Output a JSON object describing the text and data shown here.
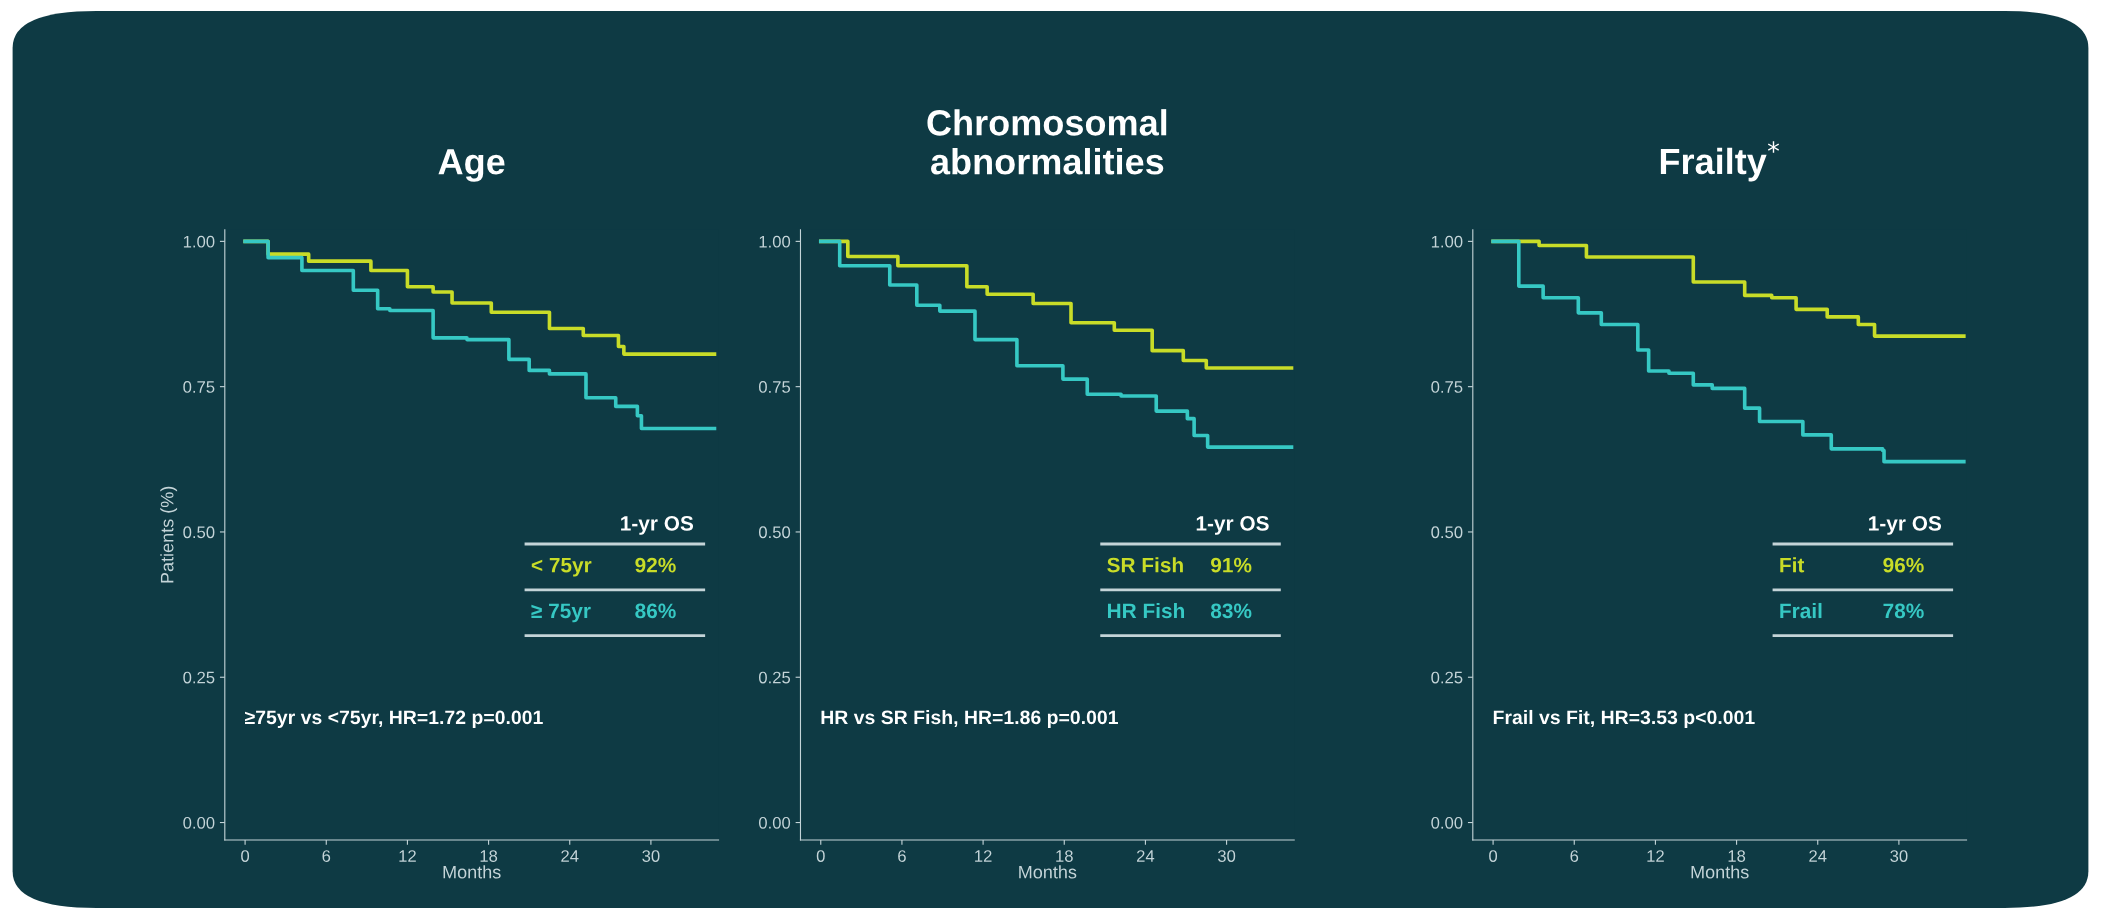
{
  "chart_data": [
    {
      "type": "step",
      "title": "Age",
      "xlabel": "Months",
      "ylabel": "Patients (%)",
      "xlim": [
        -1.5,
        35
      ],
      "ylim": [
        -0.03,
        1.02
      ],
      "xticks": [
        0,
        6,
        12,
        18,
        24,
        30
      ],
      "yticks": [
        {
          "value": 0,
          "label": "0.00"
        },
        {
          "value": 0.25,
          "label": "0.25"
        },
        {
          "value": 0.5,
          "label": "0.50"
        },
        {
          "value": 0.75,
          "label": "0.75"
        },
        {
          "value": 1,
          "label": "1.00"
        }
      ],
      "grid": false,
      "legend": "right",
      "legend_title": "1-yr OS",
      "series": [
        {
          "name": "< 75yr",
          "color": "#c8dc28",
          "x": [
            0,
            1.7,
            4.7,
            9.3,
            12,
            13.9,
            15.3,
            18.2,
            22.5,
            25,
            27.6,
            28,
            34.7
          ],
          "values": [
            1.0,
            0.978,
            0.966,
            0.95,
            0.922,
            0.913,
            0.894,
            0.878,
            0.85,
            0.838,
            0.819,
            0.806,
            0.806
          ]
        },
        {
          "name": "≥ 75yr",
          "color": "#36c8c4",
          "x": [
            0,
            1.7,
            4.2,
            8,
            9.8,
            10.7,
            13.9,
            16.4,
            19.5,
            21,
            22.5,
            25.2,
            27.4,
            29,
            29.3,
            34.7
          ],
          "values": [
            1.0,
            0.972,
            0.95,
            0.916,
            0.884,
            0.881,
            0.834,
            0.831,
            0.797,
            0.778,
            0.772,
            0.731,
            0.716,
            0.7,
            0.678,
            0.678
          ]
        }
      ],
      "annotations": [
        "92%",
        "86%",
        "≥75yr vs <75yr, HR=1.72 p=0.001"
      ]
    },
    {
      "type": "step",
      "title": "Chromosomal\nabnormalities",
      "xlabel": "Months",
      "xlim": [
        -1.5,
        35
      ],
      "ylim": [
        -0.03,
        1.02
      ],
      "xticks": [
        0,
        6,
        12,
        18,
        24,
        30
      ],
      "yticks": [
        {
          "value": 0,
          "label": "0.00"
        },
        {
          "value": 0.25,
          "label": "0.25"
        },
        {
          "value": 0.5,
          "label": "0.50"
        },
        {
          "value": 0.75,
          "label": "0.75"
        },
        {
          "value": 1,
          "label": "1.00"
        }
      ],
      "grid": false,
      "legend": "right",
      "legend_title": "1-yr OS",
      "series": [
        {
          "name": "SR Fish",
          "color": "#c8dc28",
          "x": [
            0,
            2,
            5.7,
            10.8,
            12.3,
            15.7,
            18.5,
            21.7,
            24.5,
            26.8,
            28.5,
            34.8
          ],
          "values": [
            1.0,
            0.974,
            0.958,
            0.922,
            0.909,
            0.893,
            0.86,
            0.847,
            0.812,
            0.795,
            0.782,
            0.782
          ]
        },
        {
          "name": "HR Fish",
          "color": "#36c8c4",
          "x": [
            0,
            1.4,
            5.1,
            7.1,
            8.8,
            11.4,
            14.5,
            17.9,
            19.7,
            22.2,
            24.8,
            27.1,
            27.6,
            28.6,
            34.8
          ],
          "values": [
            1.0,
            0.958,
            0.925,
            0.89,
            0.88,
            0.831,
            0.786,
            0.763,
            0.737,
            0.734,
            0.708,
            0.695,
            0.666,
            0.646,
            0.646
          ]
        }
      ],
      "annotations": [
        "91%",
        "83%",
        "HR vs SR Fish, HR=1.86 p=0.001"
      ]
    },
    {
      "type": "step",
      "title": "Frailty$^{*}$",
      "xlabel": "Months",
      "xlim": [
        -1.5,
        35
      ],
      "ylim": [
        -0.03,
        1.02
      ],
      "xticks": [
        0,
        6,
        12,
        18,
        24,
        30
      ],
      "yticks": [
        {
          "value": 0,
          "label": "0.00"
        },
        {
          "value": 0.25,
          "label": "0.25"
        },
        {
          "value": 0.5,
          "label": "0.50"
        },
        {
          "value": 0.75,
          "label": "0.75"
        },
        {
          "value": 1,
          "label": "1.00"
        }
      ],
      "grid": false,
      "legend": "right",
      "legend_title": "1-yr OS",
      "series": [
        {
          "name": "Fit",
          "color": "#c8dc28",
          "x": [
            0,
            3.4,
            6.9,
            9.2,
            14.8,
            16.5,
            18.6,
            20.6,
            22.4,
            24.7,
            27,
            28.2,
            34.8
          ],
          "values": [
            1.0,
            0.993,
            0.973,
            0.973,
            0.93,
            0.93,
            0.907,
            0.903,
            0.883,
            0.87,
            0.857,
            0.837,
            0.837
          ]
        },
        {
          "name": "Frail",
          "color": "#36c8c4",
          "x": [
            0,
            1.9,
            3.7,
            6.3,
            8,
            10.7,
            11.5,
            13,
            14.8,
            16.2,
            18.6,
            19.7,
            22.4,
            22.9,
            25,
            28.8,
            28.9,
            34.8
          ],
          "values": [
            1.0,
            0.923,
            0.903,
            0.877,
            0.857,
            0.813,
            0.777,
            0.773,
            0.753,
            0.747,
            0.713,
            0.69,
            0.69,
            0.667,
            0.643,
            0.64,
            0.621,
            0.621
          ]
        }
      ],
      "annotations": [
        "96%",
        "78%",
        "Frail vs Fit, HR=3.53 p<0.001"
      ]
    }
  ]
}
